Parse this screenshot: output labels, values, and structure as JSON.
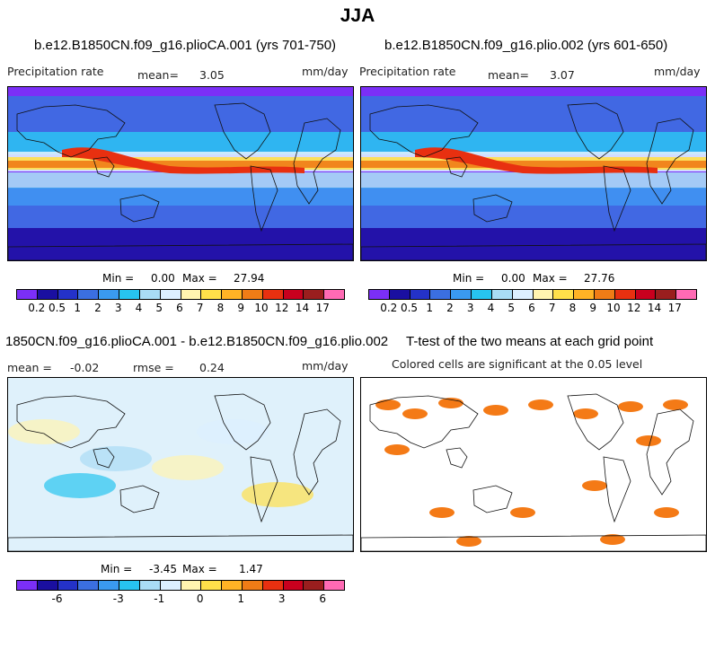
{
  "title": "JJA",
  "panels": {
    "p1": {
      "title": "b.e12.B1850CN.f09_g16.plioCA.001 (yrs 701-750)",
      "left": "Precipitation rate",
      "mean_label": "mean=",
      "mean": "3.05",
      "units": "mm/day",
      "min_label": "Min =",
      "min": "0.00",
      "max_label": "Max =",
      "max": "27.94"
    },
    "p2": {
      "title": "b.e12.B1850CN.f09_g16.plio.002 (yrs 601-650)",
      "left": "Precipitation rate",
      "mean_label": "mean=",
      "mean": "3.07",
      "units": "mm/day",
      "min_label": "Min =",
      "min": "0.00",
      "max_label": "Max =",
      "max": "27.76"
    },
    "p3": {
      "title": "1850CN.f09_g16.plioCA.001 - b.e12.B1850CN.f09_g16.plio.002",
      "mean_label": "mean =",
      "mean": "-0.02",
      "rmse_label": "rmse =",
      "rmse": "0.24",
      "units": "mm/day",
      "min_label": "Min =",
      "min": "-3.45",
      "max_label": "Max =",
      "max": "1.47"
    },
    "p4": {
      "title": "T-test of the two means at each grid point",
      "subtitle": "Colored cells are significant at the 0.05 level"
    }
  },
  "chart_data": [
    {
      "type": "heatmap",
      "title": "b.e12.B1850CN.f09_g16.plioCA.001 (yrs 701-750)",
      "variable": "Precipitation rate",
      "units": "mm/day",
      "mean": 3.05,
      "min": 0.0,
      "max": 27.94,
      "colorbar_levels": [
        0.2,
        0.5,
        1,
        2,
        3,
        4,
        5,
        6,
        7,
        8,
        9,
        10,
        12,
        14,
        17
      ],
      "colorbar_tick_labels": [
        "0.2",
        "0.5",
        "1",
        "2",
        "3",
        "4",
        "5",
        "6",
        "7",
        "8",
        "9",
        "10",
        "12",
        "14",
        "17"
      ]
    },
    {
      "type": "heatmap",
      "title": "b.e12.B1850CN.f09_g16.plio.002 (yrs 601-650)",
      "variable": "Precipitation rate",
      "units": "mm/day",
      "mean": 3.07,
      "min": 0.0,
      "max": 27.76,
      "colorbar_levels": [
        0.2,
        0.5,
        1,
        2,
        3,
        4,
        5,
        6,
        7,
        8,
        9,
        10,
        12,
        14,
        17
      ],
      "colorbar_tick_labels": [
        "0.2",
        "0.5",
        "1",
        "2",
        "3",
        "4",
        "5",
        "6",
        "7",
        "8",
        "9",
        "10",
        "12",
        "14",
        "17"
      ]
    },
    {
      "type": "heatmap",
      "title": "1850CN.f09_g16.plioCA.001 - b.e12.B1850CN.f09_g16.plio.002",
      "units": "mm/day",
      "mean": -0.02,
      "rmse": 0.24,
      "min": -3.45,
      "max": 1.47,
      "colorbar_tick_labels": [
        "-6",
        "-3",
        "-1",
        "0",
        "1",
        "3",
        "6"
      ]
    },
    {
      "type": "heatmap",
      "title": "T-test of the two means at each grid point",
      "subtitle": "Colored cells are significant at the 0.05 level"
    }
  ],
  "colors": {
    "precip_bar": [
      "#7b2ff7",
      "#1a0fa0",
      "#2432c8",
      "#3b6fe0",
      "#3a9af0",
      "#27c4f0",
      "#a9dcf5",
      "#dcefff",
      "#fff4b0",
      "#ffe04a",
      "#ffb325",
      "#f07c16",
      "#e83010",
      "#c8001e",
      "#9a1e1e",
      "#ff6ab4"
    ],
    "diff_bar": [
      "#7b2ff7",
      "#1a0fa0",
      "#2432c8",
      "#3b6fe0",
      "#3a9af0",
      "#27c4f0",
      "#a9dcf5",
      "#dcefff",
      "#fff4b0",
      "#ffe04a",
      "#ffb325",
      "#f07c16",
      "#e83010",
      "#c8001e",
      "#9a1e1e",
      "#ff6ab4"
    ],
    "significance": "#f47a16",
    "coast": "#111111"
  }
}
